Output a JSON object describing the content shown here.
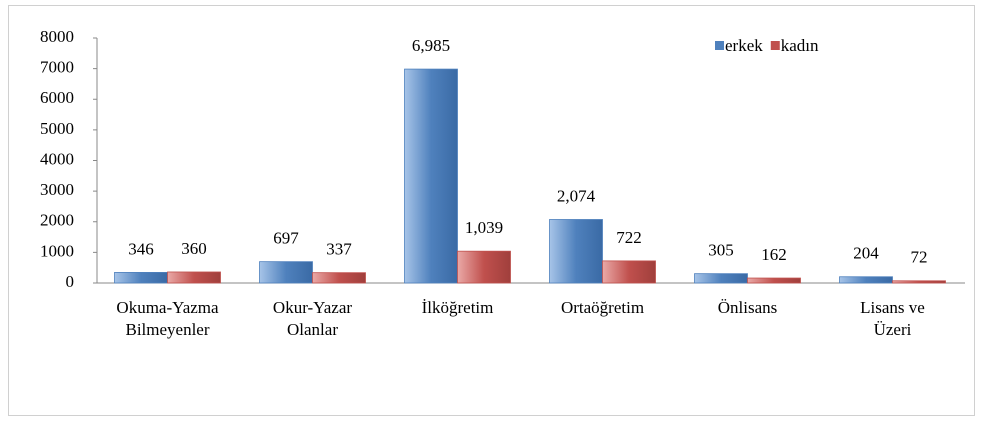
{
  "chart_data": {
    "type": "bar",
    "categories": [
      "Okuma-Yazma\nBilmeyenler",
      "Okur-Yazar\nOlanlar",
      "İlköğretim",
      "Ortaöğretim",
      "Önlisans",
      "Lisans ve\nÜzeri"
    ],
    "series": [
      {
        "name": "erkek",
        "color": "#4f81bd",
        "values": [
          346,
          697,
          6985,
          2074,
          305,
          204
        ],
        "value_labels": [
          "346",
          "697",
          "6,985",
          "2,074",
          "305",
          "204"
        ]
      },
      {
        "name": "kadın",
        "color": "#c0504d",
        "values": [
          360,
          337,
          1039,
          722,
          162,
          72
        ],
        "value_labels": [
          "360",
          "337",
          "1,039",
          "722",
          "162",
          "72"
        ]
      }
    ],
    "ylim": [
      0,
      8000
    ],
    "yticks": [
      0,
      1000,
      2000,
      3000,
      4000,
      5000,
      6000,
      7000,
      8000
    ],
    "grid": false,
    "legend": "top-right"
  }
}
